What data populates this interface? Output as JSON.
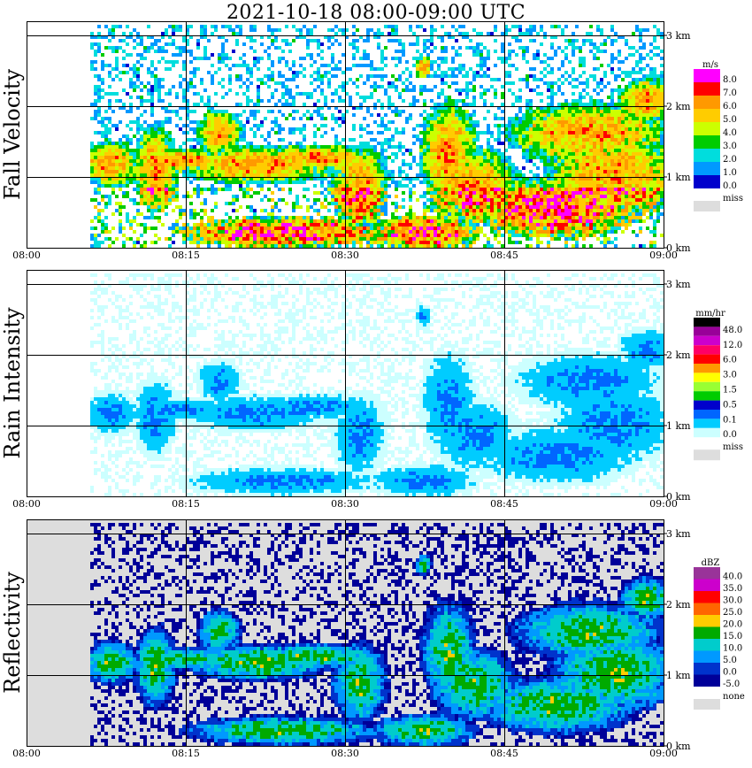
{
  "title": "2021-10-18   08:00-09:00 UTC",
  "chart_data": [
    {
      "type": "heatmap",
      "ylabel": "Fall Velocity",
      "unit": "m/s",
      "time_ticks": [
        "08:00",
        "08:15",
        "08:30",
        "08:45",
        "09:00"
      ],
      "height_ticks": [
        "0 km",
        "1 km",
        "2 km",
        "3 km"
      ],
      "ylim_km": [
        0,
        3
      ],
      "grid": true,
      "background": "#ffffff",
      "legend": {
        "position": "right",
        "levels": [
          "8.0",
          "7.0",
          "6.0",
          "5.0",
          "4.0",
          "3.0",
          "2.0",
          "1.0",
          "0.0"
        ],
        "colors": [
          "#ff00ff",
          "#ff0000",
          "#ff9900",
          "#ffcc00",
          "#ccff00",
          "#00cc00",
          "#00dddd",
          "#0099ff",
          "#0000cc"
        ],
        "miss_label": "miss",
        "miss_color": "#dddddd"
      }
    },
    {
      "type": "heatmap",
      "ylabel": "Rain Intensity",
      "unit": "mm/hr",
      "time_ticks": [
        "08:00",
        "08:15",
        "08:30",
        "08:45",
        "09:00"
      ],
      "height_ticks": [
        "0 km",
        "1 km",
        "2 km",
        "3 km"
      ],
      "ylim_km": [
        0,
        3
      ],
      "grid": true,
      "background": "#ffffff",
      "legend": {
        "position": "right",
        "levels": [
          "48.0",
          "12.0",
          "6.0",
          "3.0",
          "1.5",
          "0.5",
          "0.1",
          "0.0"
        ],
        "colors": [
          "#000000",
          "#990099",
          "#cc00cc",
          "#ff0066",
          "#ff0000",
          "#ff9900",
          "#ffff00",
          "#99ff33",
          "#00cc00",
          "#0000cc",
          "#0066ff",
          "#00ccff",
          "#ccffff"
        ],
        "miss_label": "miss",
        "miss_color": "#dddddd"
      }
    },
    {
      "type": "heatmap",
      "ylabel": "Reflectivity",
      "unit": "dBZ",
      "time_ticks": [
        "08:00",
        "08:15",
        "08:30",
        "08:45",
        "09:00"
      ],
      "height_ticks": [
        "0 km",
        "1 km",
        "2 km",
        "3 km"
      ],
      "ylim_km": [
        0,
        3
      ],
      "grid": true,
      "background": "#dddddd",
      "legend": {
        "position": "right",
        "levels": [
          "40.0",
          "35.0",
          "30.0",
          "25.0",
          "20.0",
          "15.0",
          "10.0",
          "5.0",
          "0.0",
          "-5.0"
        ],
        "colors": [
          "#993399",
          "#cc00cc",
          "#ff0000",
          "#ff6600",
          "#ffcc00",
          "#00aa00",
          "#00cccc",
          "#0099ff",
          "#0033cc",
          "#000099"
        ],
        "miss_label": "none",
        "miss_color": "#dddddd"
      }
    }
  ]
}
